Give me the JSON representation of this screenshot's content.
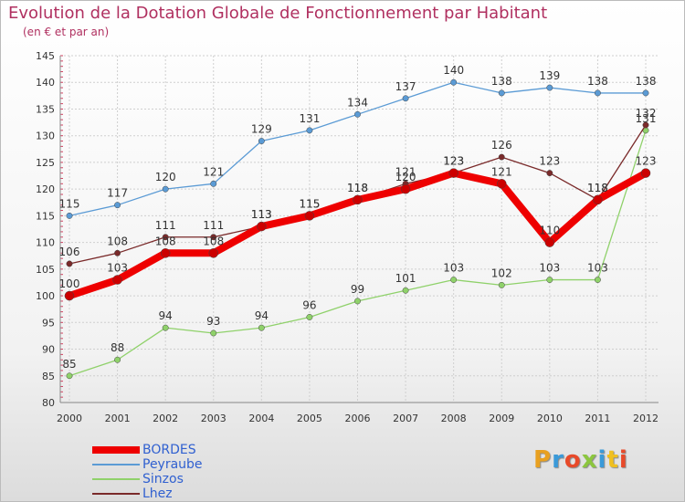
{
  "header": {
    "title": "Evolution de la Dotation Globale de Fonctionnement par Habitant",
    "subtitle": "(en € et par an)"
  },
  "logo": {
    "text": "Proxiti",
    "colors": [
      "#e8a020",
      "#3a9ad9",
      "#e84a2a",
      "#8cc63f",
      "#3a9ad9",
      "#f0c020",
      "#e84a2a"
    ]
  },
  "chart_data": {
    "type": "line",
    "title": "Evolution de la Dotation Globale de Fonctionnement par Habitant",
    "subtitle": "(en € et par an)",
    "xlabel": "",
    "ylabel": "",
    "x": [
      "2000",
      "2001",
      "2002",
      "2003",
      "2004",
      "2005",
      "2006",
      "2007",
      "2008",
      "2009",
      "2010",
      "2011",
      "2012"
    ],
    "ylim": [
      80,
      145
    ],
    "yticks": [
      80,
      85,
      90,
      95,
      100,
      105,
      110,
      115,
      120,
      125,
      130,
      135,
      140,
      145
    ],
    "grid": true,
    "legend_position": "bottom-left",
    "series": [
      {
        "name": "Peyraube",
        "color": "#5b9bd5",
        "values": [
          115,
          117,
          120,
          121,
          129,
          131,
          134,
          137,
          140,
          138,
          139,
          138,
          138
        ]
      },
      {
        "name": "Sinzos",
        "color": "#8fd16a",
        "values": [
          85,
          88,
          94,
          93,
          94,
          96,
          99,
          101,
          103,
          102,
          103,
          103,
          131
        ]
      },
      {
        "name": "Lhez",
        "color": "#7a2a2a",
        "values": [
          106,
          108,
          111,
          111,
          113,
          115,
          118,
          121,
          123,
          126,
          123,
          118,
          132
        ]
      },
      {
        "name": "BORDES",
        "color": "#ee0000",
        "values": [
          100,
          103,
          108,
          108,
          113,
          115,
          118,
          120,
          123,
          121,
          110,
          118,
          123
        ]
      }
    ]
  }
}
